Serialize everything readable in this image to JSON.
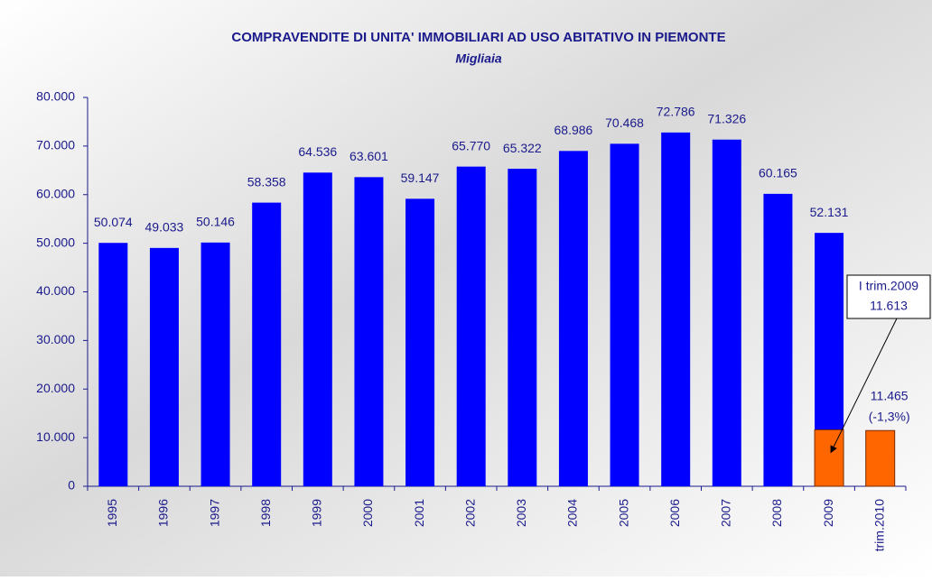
{
  "chart_data": {
    "type": "bar",
    "title": "COMPRAVENDITE DI UNITA' IMMOBILIARI AD USO ABITATIVO IN PIEMONTE",
    "subtitle": "Migliaia",
    "categories": [
      "1995",
      "1996",
      "1997",
      "1998",
      "1999",
      "2000",
      "2001",
      "2002",
      "2003",
      "2004",
      "2005",
      "2006",
      "2007",
      "2008",
      "2009",
      "trim.2010"
    ],
    "series": [
      {
        "name": "Compravendite",
        "color": "#0000ff",
        "values": [
          50074,
          49033,
          50146,
          58358,
          64536,
          63601,
          59147,
          65770,
          65322,
          68986,
          70468,
          72786,
          71326,
          60165,
          52131,
          null
        ],
        "value_labels": [
          "50.074",
          "49.033",
          "50.146",
          "58.358",
          "64.536",
          "63.601",
          "59.147",
          "65.770",
          "65.322",
          "68.986",
          "70.468",
          "72.786",
          "71.326",
          "60.165",
          "52.131",
          null
        ]
      },
      {
        "name": "I trimestre",
        "color": "#ff6600",
        "values": [
          null,
          null,
          null,
          null,
          null,
          null,
          null,
          null,
          null,
          null,
          null,
          null,
          null,
          null,
          11613,
          11465
        ],
        "value_labels": [
          null,
          null,
          null,
          null,
          null,
          null,
          null,
          null,
          null,
          null,
          null,
          null,
          null,
          null,
          "11.613",
          "11.465"
        ]
      }
    ],
    "annotations": [
      "I trim.2009",
      "(-1,3%)"
    ],
    "ylim": [
      0,
      80000
    ],
    "yticks": [
      0,
      {
        "value": 10000,
        "label": "10.000"
      },
      {
        "value": 20000,
        "label": "20.000"
      },
      {
        "value": 30000,
        "label": "30.000"
      },
      {
        "value": 40000,
        "label": "40.000"
      },
      {
        "value": 50000,
        "label": "50.000"
      },
      {
        "value": 60000,
        "label": "60.000"
      },
      {
        "value": 70000,
        "label": "70.000"
      },
      {
        "value": 80000,
        "label": "80.000"
      }
    ],
    "grid": false
  }
}
